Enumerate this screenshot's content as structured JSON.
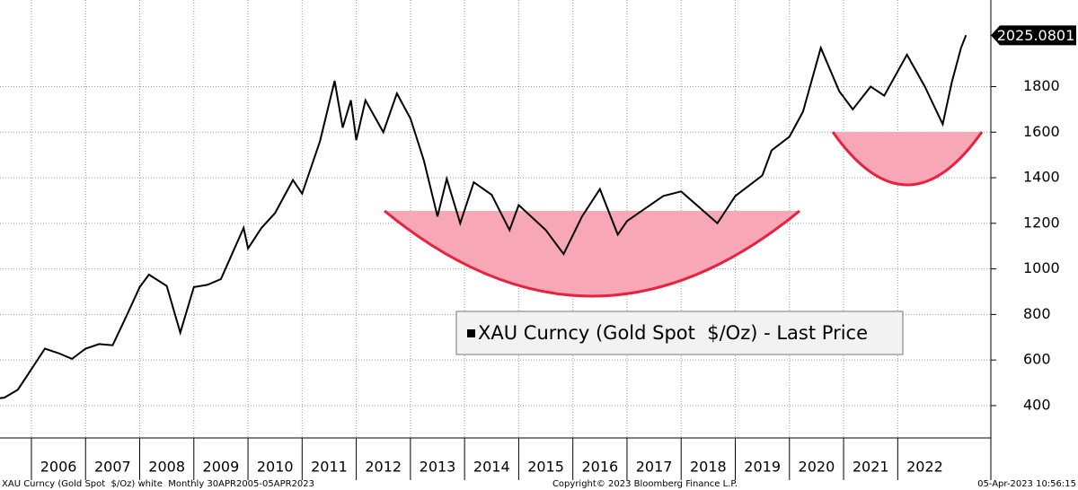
{
  "chart_data": {
    "type": "line",
    "legend": "XAU Curncy (Gold Spot  $/Oz) - Last Price",
    "footer_left": "XAU Curncy (Gold Spot  $/Oz) white  Monthly 30APR2005-05APR2023",
    "footer_center": "Copyright© 2023 Bloomberg Finance L.P.",
    "footer_right": "05-Apr-2023 10:56:15",
    "x": [
      2005.33,
      2005.5,
      2005.75,
      2006.0,
      2006.25,
      2006.5,
      2006.75,
      2007.0,
      2007.25,
      2007.5,
      2007.75,
      2008.0,
      2008.17,
      2008.5,
      2008.75,
      2009.0,
      2009.25,
      2009.5,
      2009.92,
      2010.0,
      2010.25,
      2010.5,
      2010.83,
      2011.0,
      2011.33,
      2011.6,
      2011.75,
      2011.9,
      2012.0,
      2012.17,
      2012.5,
      2012.75,
      2013.0,
      2013.25,
      2013.5,
      2013.67,
      2013.92,
      2014.17,
      2014.5,
      2014.83,
      2015.0,
      2015.5,
      2015.83,
      2016.17,
      2016.5,
      2016.83,
      2017.0,
      2017.67,
      2018.0,
      2018.67,
      2019.0,
      2019.5,
      2019.67,
      2020.0,
      2020.25,
      2020.58,
      2020.92,
      2021.17,
      2021.5,
      2021.75,
      2022.17,
      2022.5,
      2022.83,
      2023.0,
      2023.17,
      2023.26
    ],
    "series": [
      {
        "name": "XAU Curncy (Gold Spot  $/Oz) - Last Price",
        "color": "#000000",
        "values": [
          430,
          435,
          470,
          560,
          650,
          630,
          605,
          650,
          670,
          665,
          790,
          920,
          975,
          925,
          720,
          920,
          930,
          955,
          1180,
          1090,
          1180,
          1245,
          1390,
          1330,
          1560,
          1825,
          1620,
          1740,
          1565,
          1740,
          1600,
          1770,
          1660,
          1475,
          1230,
          1395,
          1200,
          1380,
          1325,
          1170,
          1280,
          1170,
          1065,
          1230,
          1350,
          1150,
          1210,
          1320,
          1340,
          1200,
          1320,
          1410,
          1520,
          1580,
          1690,
          1970,
          1780,
          1700,
          1800,
          1760,
          1940,
          1800,
          1635,
          1820,
          1970,
          2025.0801
        ]
      }
    ],
    "xlim": [
      2005.42,
      2023.72
    ],
    "xticks": [
      2006,
      2007,
      2008,
      2009,
      2010,
      2011,
      2012,
      2013,
      2014,
      2015,
      2016,
      2017,
      2018,
      2019,
      2020,
      2021,
      2022
    ],
    "ylim": [
      258,
      2180
    ],
    "yticks": [
      400,
      600,
      800,
      1000,
      1200,
      1400,
      1600,
      1800
    ],
    "grid": true
  }
}
